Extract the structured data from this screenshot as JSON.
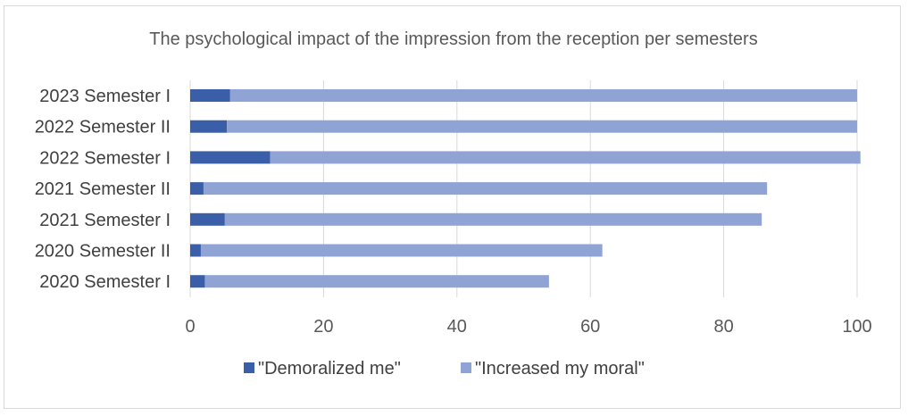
{
  "chart_data": {
    "type": "bar",
    "orientation": "horizontal",
    "stacked": true,
    "title": "The psychological impact of the impression from the reception per semesters",
    "categories": [
      "2023 Semester I",
      "2022 Semester II",
      "2022 Semester I",
      "2021 Semester II",
      "2021 Semester I",
      "2020 Semester II",
      "2020 Semester I"
    ],
    "series": [
      {
        "name": "\"Demoralized me\"",
        "color": "#3a5ea8",
        "values": [
          6,
          5.5,
          12,
          2,
          5.2,
          1.6,
          2.2
        ]
      },
      {
        "name": "\"Increased my moral\"",
        "color": "#8fa3d4",
        "values": [
          94,
          94.5,
          88.5,
          84.5,
          80.5,
          60.2,
          51.6
        ]
      }
    ],
    "xlim": [
      0,
      100
    ],
    "xticks": [
      "0",
      "20",
      "40",
      "60",
      "80",
      "100"
    ],
    "grid": true,
    "legend": "bottom"
  }
}
